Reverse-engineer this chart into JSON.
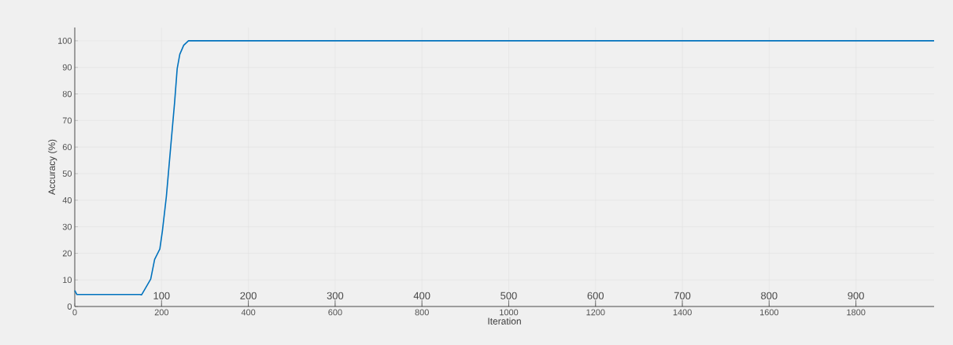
{
  "chart_data": {
    "type": "line",
    "xlabel": "Iteration",
    "ylabel": "Accuracy (%)",
    "x": [
      0,
      5,
      150,
      154,
      163,
      175,
      184,
      196,
      202,
      211,
      221,
      230,
      236,
      242,
      251,
      262,
      1980
    ],
    "series": [
      {
        "color": "#0072bd",
        "values": [
          6,
          4.5,
          4.5,
          4.4,
          6.9,
          10.3,
          17.7,
          21.6,
          28.5,
          41.3,
          60,
          76.7,
          89.5,
          94.9,
          98.3,
          100,
          100
        ]
      }
    ],
    "xlim": [
      0,
      1980
    ],
    "ylim": [
      0,
      105
    ],
    "xticks": [
      0,
      200,
      400,
      600,
      800,
      1000,
      1200,
      1400,
      1600,
      1800
    ],
    "yticks": [
      0,
      10,
      20,
      30,
      40,
      50,
      60,
      70,
      80,
      90,
      100
    ],
    "grid": true,
    "x2lim": [
      0,
      990
    ],
    "x2ticks": [
      100,
      200,
      300,
      400,
      500,
      600,
      700,
      800,
      900
    ]
  }
}
